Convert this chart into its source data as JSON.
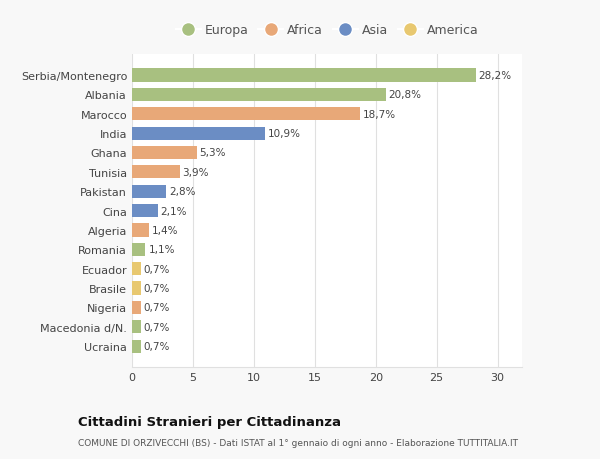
{
  "countries": [
    "Serbia/Montenegro",
    "Albania",
    "Marocco",
    "India",
    "Ghana",
    "Tunisia",
    "Pakistan",
    "Cina",
    "Algeria",
    "Romania",
    "Ecuador",
    "Brasile",
    "Nigeria",
    "Macedonia d/N.",
    "Ucraina"
  ],
  "values": [
    28.2,
    20.8,
    18.7,
    10.9,
    5.3,
    3.9,
    2.8,
    2.1,
    1.4,
    1.1,
    0.7,
    0.7,
    0.7,
    0.7,
    0.7
  ],
  "labels": [
    "28,2%",
    "20,8%",
    "18,7%",
    "10,9%",
    "5,3%",
    "3,9%",
    "2,8%",
    "2,1%",
    "1,4%",
    "1,1%",
    "0,7%",
    "0,7%",
    "0,7%",
    "0,7%",
    "0,7%"
  ],
  "colors": [
    "#a8c080",
    "#a8c080",
    "#e8a878",
    "#6b8dc4",
    "#e8a878",
    "#e8a878",
    "#6b8dc4",
    "#6b8dc4",
    "#e8a878",
    "#a8c080",
    "#e8c870",
    "#e8c870",
    "#e8a878",
    "#a8c080",
    "#a8c080"
  ],
  "legend_labels": [
    "Europa",
    "Africa",
    "Asia",
    "America"
  ],
  "legend_colors": [
    "#a8c080",
    "#e8a878",
    "#6b8dc4",
    "#e8c870"
  ],
  "title": "Cittadini Stranieri per Cittadinanza",
  "subtitle": "COMUNE DI ORZIVECCHI (BS) - Dati ISTAT al 1° gennaio di ogni anno - Elaborazione TUTTITALIA.IT",
  "xlim": [
    0,
    32
  ],
  "xticks": [
    0,
    5,
    10,
    15,
    20,
    25,
    30
  ],
  "bg_color": "#f8f8f8",
  "plot_bg_color": "#ffffff",
  "grid_color": "#e0e0e0"
}
